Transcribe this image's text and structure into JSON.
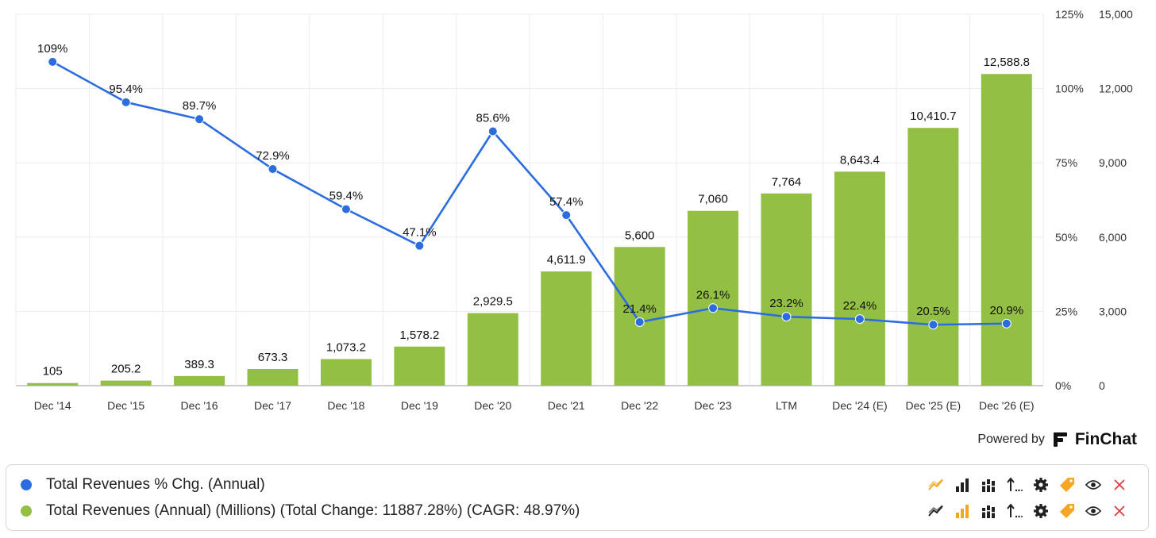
{
  "chart_data": {
    "type": "bar",
    "categories": [
      "Dec '14",
      "Dec '15",
      "Dec '16",
      "Dec '17",
      "Dec '18",
      "Dec '19",
      "Dec '20",
      "Dec '21",
      "Dec '22",
      "Dec '23",
      "LTM",
      "Dec '24 (E)",
      "Dec '25 (E)",
      "Dec '26 (E)"
    ],
    "series": [
      {
        "name": "Total Revenues (Annual) (Millions) (Total Change: 11887.28%) (CAGR: 48.97%)",
        "type": "bar",
        "axis": "right",
        "color": "#93bf45",
        "values": [
          105,
          205.2,
          389.3,
          673.3,
          1073.2,
          1578.2,
          2929.5,
          4611.9,
          5600,
          7060,
          7764,
          8643.4,
          10410.7,
          12588.8
        ],
        "labels": [
          "105",
          "205.2",
          "389.3",
          "673.3",
          "1,073.2",
          "1,578.2",
          "2,929.5",
          "4,611.9",
          "5,600",
          "7,060",
          "7,764",
          "8,643.4",
          "10,410.7",
          "12,588.8"
        ]
      },
      {
        "name": "Total Revenues % Chg. (Annual)",
        "type": "line",
        "axis": "left",
        "color": "#2b6de0",
        "values": [
          109,
          95.4,
          89.7,
          72.9,
          59.4,
          47.1,
          85.6,
          57.4,
          21.4,
          26.1,
          23.2,
          22.4,
          20.5,
          20.9
        ],
        "labels": [
          "109%",
          "95.4%",
          "89.7%",
          "72.9%",
          "59.4%",
          "47.1%",
          "85.6%",
          "57.4%",
          "21.4%",
          "26.1%",
          "23.2%",
          "22.4%",
          "20.5%",
          "20.9%"
        ]
      }
    ],
    "y_pct": {
      "ticks": [
        "0%",
        "25%",
        "50%",
        "75%",
        "100%",
        "125%"
      ],
      "range": [
        0,
        125
      ]
    },
    "y_val": {
      "ticks": [
        "0",
        "3,000",
        "6,000",
        "9,000",
        "12,000",
        "15,000"
      ],
      "range": [
        0,
        15000
      ]
    },
    "grid": true,
    "legend": "bottom"
  },
  "powered_by": {
    "text": "Powered by",
    "brand": "FinChat"
  },
  "legend": [
    {
      "label": "Total Revenues % Chg. (Annual)",
      "color": "#2b6de0"
    },
    {
      "label": "Total Revenues (Annual) (Millions) (Total Change: 11887.28%) (CAGR: 48.97%)",
      "color": "#93bf45"
    }
  ],
  "colors": {
    "icon_orange": "#f5a623",
    "icon_dark": "#222222",
    "icon_red": "#e0393e"
  }
}
